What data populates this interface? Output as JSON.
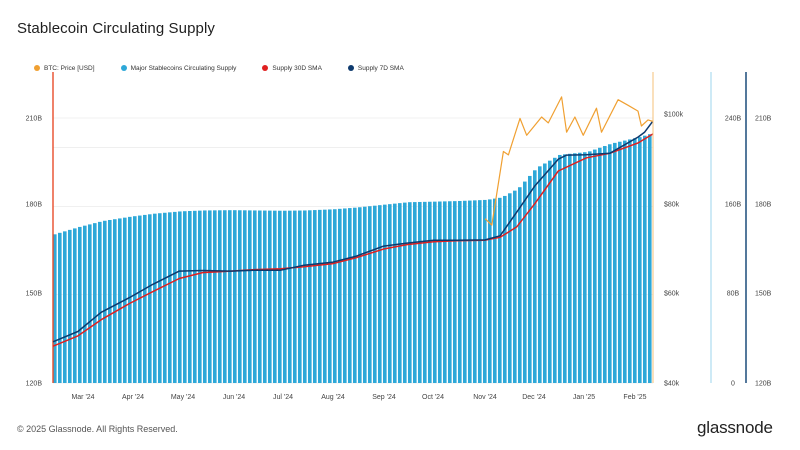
{
  "header": {
    "title": "Stablecoin Circulating Supply"
  },
  "footer": {
    "copyright": "© 2025 Glassnode. All Rights Reserved.",
    "brand": "glassnode"
  },
  "colors": {
    "btc": "#f0a032",
    "supply": "#2ea8d8",
    "sma30": "#e02020",
    "sma7": "#0e3a6e",
    "marker": "#e84c2a"
  },
  "chart_data": {
    "type": "bar",
    "title": "Stablecoin Circulating Supply",
    "legend": [
      "BTC: Price [USD]",
      "Major Stablecoins Circulating Supply",
      "Supply 30D SMA",
      "Supply 7D SMA"
    ],
    "x_ticks": [
      "Mar '24",
      "Apr '24",
      "May '24",
      "Jun '24",
      "Jul '24",
      "Aug '24",
      "Sep '24",
      "Oct '24",
      "Nov '24",
      "Dec '24",
      "Jan '25",
      "Feb '25"
    ],
    "axes": {
      "left_supply": {
        "ticks": [
          "120B",
          "150B",
          "180B",
          "210B"
        ],
        "range": [
          120,
          210
        ]
      },
      "btc_price": {
        "ticks": [
          "$40k",
          "$60k",
          "$80k",
          "$100k"
        ],
        "range": [
          40000,
          100000
        ],
        "scale": "log"
      },
      "right_a": {
        "ticks": [
          "0",
          "80B",
          "160B",
          "240B"
        ]
      },
      "right_b": {
        "ticks": [
          "120B",
          "150B",
          "180B",
          "210B"
        ]
      }
    },
    "series": [
      {
        "name": "Major Stablecoins Circulating Supply",
        "kind": "bars",
        "x": [
          "2024-02-15",
          "2024-03-01",
          "2024-03-15",
          "2024-04-01",
          "2024-04-15",
          "2024-05-01",
          "2024-05-15",
          "2024-06-01",
          "2024-06-15",
          "2024-07-01",
          "2024-07-15",
          "2024-08-01",
          "2024-08-15",
          "2024-09-01",
          "2024-09-15",
          "2024-10-01",
          "2024-10-15",
          "2024-11-01",
          "2024-11-10",
          "2024-11-20",
          "2024-12-01",
          "2024-12-15",
          "2025-01-01",
          "2025-01-15",
          "2025-02-01",
          "2025-02-10"
        ],
        "values": [
          170.5,
          173,
          175,
          176.5,
          177.5,
          178.3,
          178.6,
          178.7,
          178.6,
          178.5,
          178.6,
          179,
          179.6,
          180.6,
          181.4,
          181.6,
          181.8,
          182.2,
          183,
          186,
          193,
          197.5,
          198.5,
          201.3,
          203.5,
          205
        ]
      },
      {
        "name": "Supply 7D SMA",
        "kind": "line",
        "x": [
          "2024-02-15",
          "2024-03-01",
          "2024-03-15",
          "2024-04-01",
          "2024-04-15",
          "2024-05-01",
          "2024-05-15",
          "2024-06-01",
          "2024-06-15",
          "2024-07-01",
          "2024-07-15",
          "2024-08-01",
          "2024-08-15",
          "2024-09-01",
          "2024-09-15",
          "2024-10-01",
          "2024-10-15",
          "2024-11-01",
          "2024-11-10",
          "2024-11-20",
          "2024-12-01",
          "2024-12-15",
          "2024-12-20",
          "2025-01-01",
          "2025-01-15",
          "2025-02-01",
          "2025-02-05",
          "2025-02-10"
        ],
        "values": [
          134,
          137.5,
          144,
          149,
          153.5,
          158,
          158.2,
          158,
          158.3,
          158.3,
          160,
          161,
          163,
          166.5,
          167.5,
          168.5,
          168.5,
          168.6,
          170,
          178,
          187,
          196,
          197.4,
          197.5,
          198,
          203.5,
          205.2,
          209
        ]
      },
      {
        "name": "Supply 30D SMA",
        "kind": "line",
        "x": [
          "2024-02-15",
          "2024-03-01",
          "2024-03-15",
          "2024-04-01",
          "2024-04-15",
          "2024-05-01",
          "2024-05-15",
          "2024-06-01",
          "2024-06-15",
          "2024-07-01",
          "2024-07-15",
          "2024-08-01",
          "2024-08-15",
          "2024-09-01",
          "2024-09-15",
          "2024-10-01",
          "2024-10-15",
          "2024-11-01",
          "2024-11-10",
          "2024-11-20",
          "2024-12-01",
          "2024-12-15",
          "2025-01-01",
          "2025-01-15",
          "2025-02-01",
          "2025-02-10"
        ],
        "values": [
          132.5,
          136,
          141.5,
          147,
          151,
          155.5,
          157.5,
          158,
          158.5,
          158.8,
          159.5,
          160.5,
          162.5,
          165.5,
          167,
          168,
          168.3,
          168.5,
          169.5,
          173,
          181,
          192,
          196.5,
          198,
          201.5,
          204.6
        ]
      },
      {
        "name": "BTC: Price [USD]",
        "kind": "line",
        "x": [
          "2024-11-01",
          "2024-11-05",
          "2024-11-12",
          "2024-11-15",
          "2024-11-22",
          "2024-11-26",
          "2024-12-05",
          "2024-12-09",
          "2024-12-17",
          "2024-12-20",
          "2024-12-25",
          "2024-12-30",
          "2025-01-07",
          "2025-01-10",
          "2025-01-20",
          "2025-01-26",
          "2025-02-01",
          "2025-02-03",
          "2025-02-07",
          "2025-02-10"
        ],
        "values": [
          70000,
          68500,
          88000,
          87000,
          98500,
          93000,
          99000,
          97000,
          106000,
          94000,
          99000,
          93000,
          102000,
          94000,
          105000,
          103000,
          101000,
          96000,
          98000,
          97500
        ]
      }
    ]
  }
}
